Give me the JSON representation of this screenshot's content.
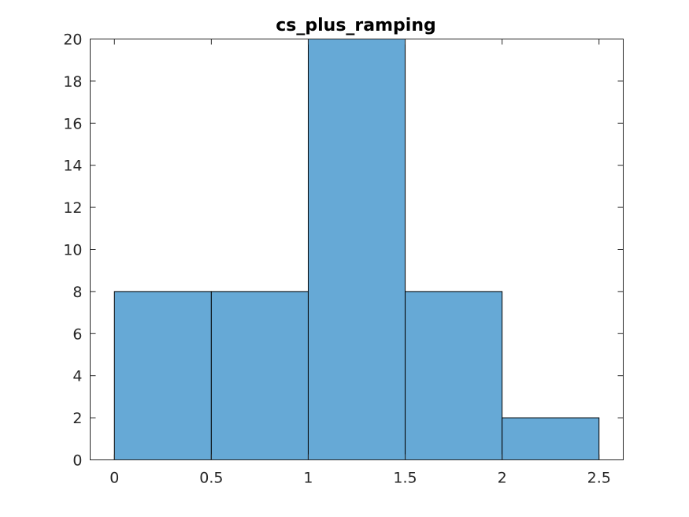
{
  "chart_data": {
    "type": "bar",
    "title": "cs_plus_ramping",
    "xlabel": "",
    "ylabel": "",
    "bin_edges": [
      0,
      0.5,
      1,
      1.5,
      2,
      2.5
    ],
    "values": [
      8,
      8,
      20,
      8,
      2
    ],
    "xlim": [
      -0.125,
      2.625
    ],
    "ylim": [
      0,
      20
    ],
    "xticks": [
      0,
      0.5,
      1,
      1.5,
      2,
      2.5
    ],
    "xtick_labels": [
      "0",
      "0.5",
      "1",
      "1.5",
      "2",
      "2.5"
    ],
    "yticks": [
      0,
      2,
      4,
      6,
      8,
      10,
      12,
      14,
      16,
      18,
      20
    ],
    "ytick_labels": [
      "0",
      "2",
      "4",
      "6",
      "8",
      "10",
      "12",
      "14",
      "16",
      "18",
      "20"
    ],
    "bar_color": "#66a9d6",
    "grid": false,
    "legend": "none"
  }
}
